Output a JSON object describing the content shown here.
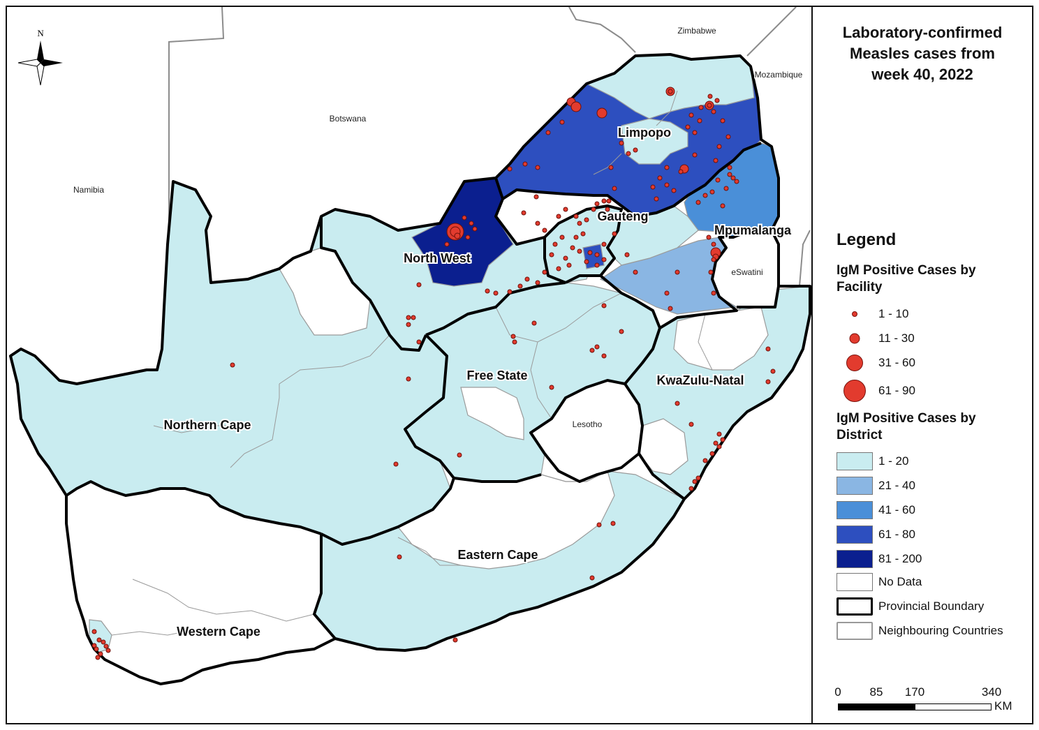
{
  "title_lines": [
    "Laboratory-confirmed",
    "Measles cases from",
    "week 40, 2022"
  ],
  "north_label": "N",
  "countries": {
    "zimbabwe": "Zimbabwe",
    "mozambique": "Mozambique",
    "botswana": "Botswana",
    "namibia": "Namibia",
    "eswatini": "eSwatini",
    "lesotho": "Lesotho"
  },
  "provinces": {
    "limpopo": "Limpopo",
    "gauteng": "Gauteng",
    "mpumalanga": "Mpumalanga",
    "north_west": "North West",
    "free_state": "Free State",
    "kwazulu_natal": "KwaZulu-Natal",
    "northern_cape": "Northern Cape",
    "eastern_cape": "Eastern Cape",
    "western_cape": "Western Cape"
  },
  "legend": {
    "heading": "Legend",
    "facility_heading_lines": [
      "IgM Positive Cases by",
      "Facility"
    ],
    "facility_classes": [
      {
        "label": "1 - 10"
      },
      {
        "label": "11 - 30"
      },
      {
        "label": "31 - 60"
      },
      {
        "label": "61 - 90"
      }
    ],
    "district_heading_lines": [
      "IgM Positive Cases by",
      "District"
    ],
    "district_classes": [
      {
        "label": "1 - 20",
        "color": "#c9ecf0"
      },
      {
        "label": "21 - 40",
        "color": "#8ab6e3"
      },
      {
        "label": "41 - 60",
        "color": "#4a8fd8"
      },
      {
        "label": "61 - 80",
        "color": "#2d4fbf"
      },
      {
        "label": "81 - 200",
        "color": "#0b1f8f"
      },
      {
        "label": "No Data",
        "color": "#ffffff"
      }
    ],
    "boundary_items": [
      {
        "label": "Provincial Boundary"
      },
      {
        "label": "Neighbouring Countries"
      }
    ]
  },
  "scale_bar": {
    "ticks": [
      "0",
      "85",
      "170",
      "340"
    ],
    "unit": "KM"
  },
  "colors": {
    "case_point": "#e23b2e",
    "province_boundary": "#000000",
    "district_boundary": "#9a9a9a"
  }
}
